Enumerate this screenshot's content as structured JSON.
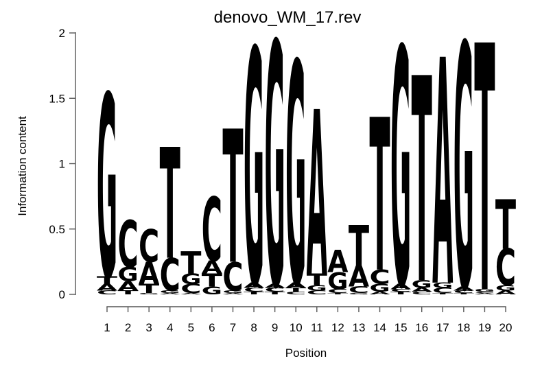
{
  "chart_data": {
    "type": "bar",
    "subtype": "sequence-logo-stacked-letters",
    "title": "denovo_WM_17.rev",
    "xlabel": "Position",
    "ylabel": "Information content",
    "ylim": [
      0,
      2
    ],
    "yticks": [
      0,
      0.5,
      1,
      1.5,
      2
    ],
    "positions": [
      1,
      2,
      3,
      4,
      5,
      6,
      7,
      8,
      9,
      10,
      11,
      12,
      13,
      14,
      15,
      16,
      17,
      18,
      19,
      20
    ],
    "legend": "none",
    "grid": false,
    "letter_colors": {
      "A": "#00CD00",
      "C": "#0000EE",
      "G": "#FFA500",
      "T": "#FF0000"
    },
    "stacks_note": "per position, letters bottom-to-top with information-content heights (bits)",
    "stacks": [
      [
        [
          "C",
          0.03
        ],
        [
          "A",
          0.05
        ],
        [
          "T",
          0.06
        ],
        [
          "G",
          1.4
        ]
      ],
      [
        [
          "T",
          0.03
        ],
        [
          "A",
          0.07
        ],
        [
          "G",
          0.11
        ],
        [
          "C",
          0.36
        ]
      ],
      [
        [
          "G",
          0.01
        ],
        [
          "T",
          0.07
        ],
        [
          "A",
          0.17
        ],
        [
          "C",
          0.25
        ]
      ],
      [
        [
          "A",
          0.01
        ],
        [
          "G",
          0.02
        ],
        [
          "C",
          0.25
        ],
        [
          "T",
          0.85
        ]
      ],
      [
        [
          "A",
          0.01
        ],
        [
          "C",
          0.07
        ],
        [
          "G",
          0.08
        ],
        [
          "T",
          0.17
        ]
      ],
      [
        [
          "G",
          0.06
        ],
        [
          "T",
          0.1
        ],
        [
          "A",
          0.1
        ],
        [
          "C",
          0.49
        ]
      ],
      [
        [
          "A",
          0.01
        ],
        [
          "G",
          0.02
        ],
        [
          "C",
          0.22
        ],
        [
          "T",
          1.02
        ]
      ],
      [
        [
          "T",
          0.02
        ],
        [
          "C",
          0.03
        ],
        [
          "A",
          0.04
        ],
        [
          "G",
          1.8
        ]
      ],
      [
        [
          "T",
          0.02
        ],
        [
          "C",
          0.03
        ],
        [
          "A",
          0.03
        ],
        [
          "G",
          1.86
        ]
      ],
      [
        [
          "C",
          0.02
        ],
        [
          "T",
          0.03
        ],
        [
          "A",
          0.04
        ],
        [
          "G",
          1.7
        ]
      ],
      [
        [
          "C",
          0.03
        ],
        [
          "G",
          0.04
        ],
        [
          "T",
          0.09
        ],
        [
          "A",
          1.26
        ]
      ],
      [
        [
          "T",
          0.01
        ],
        [
          "C",
          0.03
        ],
        [
          "G",
          0.13
        ],
        [
          "A",
          0.17
        ]
      ],
      [
        [
          "G",
          0.01
        ],
        [
          "C",
          0.05
        ],
        [
          "A",
          0.16
        ],
        [
          "T",
          0.31
        ]
      ],
      [
        [
          "A",
          0.02
        ],
        [
          "G",
          0.06
        ],
        [
          "C",
          0.11
        ],
        [
          "T",
          1.17
        ]
      ],
      [
        [
          "T",
          0.02
        ],
        [
          "C",
          0.02
        ],
        [
          "A",
          0.04
        ],
        [
          "G",
          1.82
        ]
      ],
      [
        [
          "C",
          0.02
        ],
        [
          "A",
          0.03
        ],
        [
          "G",
          0.06
        ],
        [
          "T",
          1.57
        ]
      ],
      [
        [
          "T",
          0.01
        ],
        [
          "C",
          0.04
        ],
        [
          "G",
          0.04
        ],
        [
          "A",
          1.73
        ]
      ],
      [
        [
          "T",
          0.01
        ],
        [
          "C",
          0.02
        ],
        [
          "A",
          0.03
        ],
        [
          "G",
          1.87
        ]
      ],
      [
        [
          "A",
          0.01
        ],
        [
          "C",
          0.01
        ],
        [
          "G",
          0.02
        ],
        [
          "T",
          1.89
        ]
      ],
      [
        [
          "A",
          0.03
        ],
        [
          "G",
          0.04
        ],
        [
          "C",
          0.28
        ],
        [
          "T",
          0.38
        ]
      ]
    ],
    "consensus_top_letters": "GCCTTCTGGGAATTGTAGTT"
  },
  "style": {
    "axis_line_color": "#555555",
    "text_color": "#000000",
    "background": "#ffffff"
  }
}
